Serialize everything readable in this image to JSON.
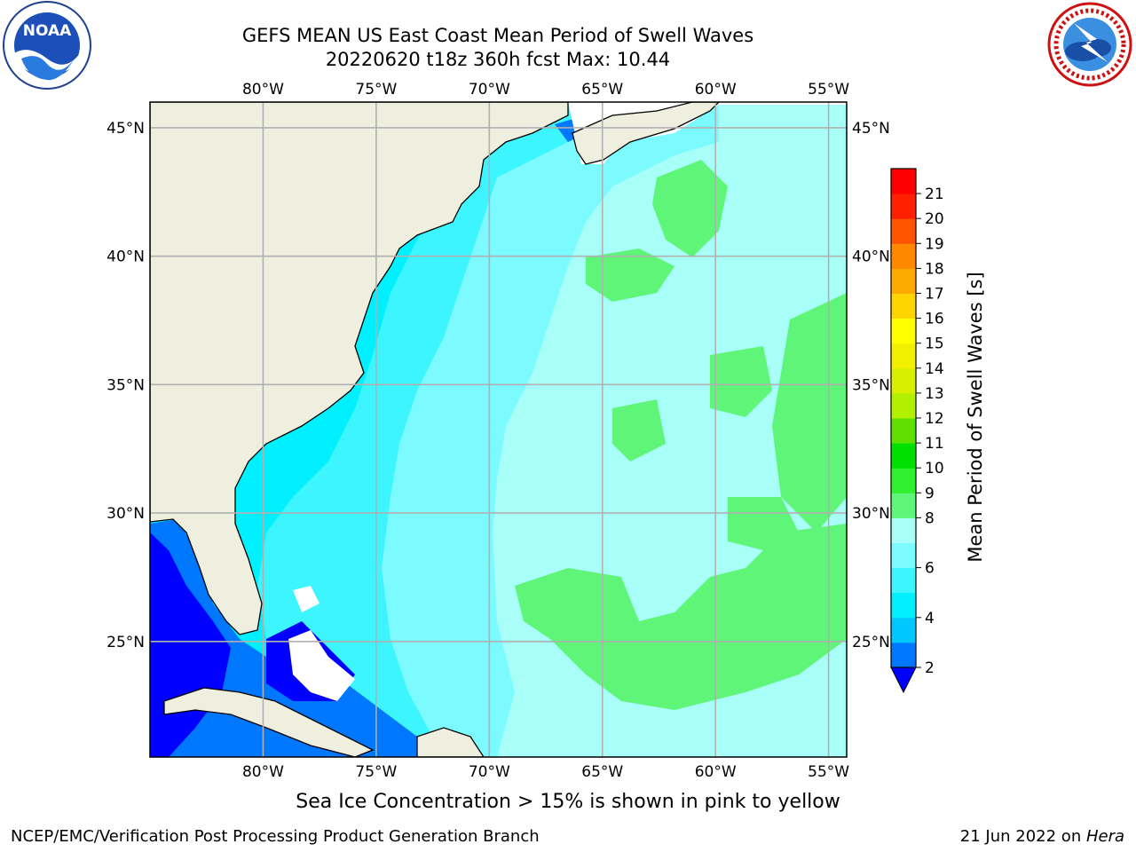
{
  "title": {
    "line1": "GEFS MEAN US East Coast Mean Period of Swell Waves",
    "line2": "20220620 t18z 360h fcst   Max: 10.44"
  },
  "map": {
    "lon_range": [
      -85,
      -54.2
    ],
    "lat_range": [
      20.5,
      46
    ],
    "lon_ticks": [
      {
        "lon": -80,
        "label": "80°W"
      },
      {
        "lon": -75,
        "label": "75°W"
      },
      {
        "lon": -70,
        "label": "70°W"
      },
      {
        "lon": -65,
        "label": "65°W"
      },
      {
        "lon": -60,
        "label": "60°W"
      },
      {
        "lon": -55,
        "label": "55°W"
      }
    ],
    "lat_ticks": [
      {
        "lat": 45,
        "label": "45°N"
      },
      {
        "lat": 40,
        "label": "40°N"
      },
      {
        "lat": 35,
        "label": "35°N"
      },
      {
        "lat": 30,
        "label": "30°N"
      },
      {
        "lat": 25,
        "label": "25°N"
      }
    ],
    "grid": true
  },
  "colorbar": {
    "label": "Mean Period of Swell Waves [s]",
    "levels": [
      2,
      3,
      4,
      5,
      6,
      7,
      8,
      9,
      10,
      11,
      12,
      13,
      14,
      15,
      16,
      17,
      18,
      19,
      20,
      21
    ],
    "tick_labels": [
      "2",
      "4",
      "6",
      "8",
      "9",
      "10",
      "11",
      "12",
      "13",
      "14",
      "15",
      "16",
      "17",
      "18",
      "19",
      "20",
      "21"
    ],
    "colors": [
      "#0077ff",
      "#00c8ff",
      "#00f0ff",
      "#3cf5ff",
      "#7bfaff",
      "#a8fff8",
      "#5ff578",
      "#30f030",
      "#00e000",
      "#60e000",
      "#b0f000",
      "#d8f000",
      "#f0f000",
      "#ffff00",
      "#ffd400",
      "#ffaa00",
      "#ff8800",
      "#ff5500",
      "#ff2000",
      "#ff0000"
    ],
    "under_color": "#0000ff",
    "extend": "min"
  },
  "colors": {
    "land": "#efefdf",
    "grid": "#b0b0b0",
    "coast": "#000000",
    "deep_blue": "#0000ff",
    "blue": "#0077ff",
    "cyan": "#00f0ff",
    "light_cyan": "#3cf5ff",
    "pale_cyan": "#a8fff8",
    "green": "#5ff578"
  },
  "note": "Sea Ice Concentration > 15% is shown in pink to yellow",
  "footer": {
    "left": "NCEP/EMC/Verification Post Processing Product Generation Branch",
    "right_date": "21 Jun 2022 on ",
    "right_host": "Hera"
  },
  "logos": {
    "noaa_text": "NOAA",
    "nws_icon": "nws-lightning-icon"
  }
}
